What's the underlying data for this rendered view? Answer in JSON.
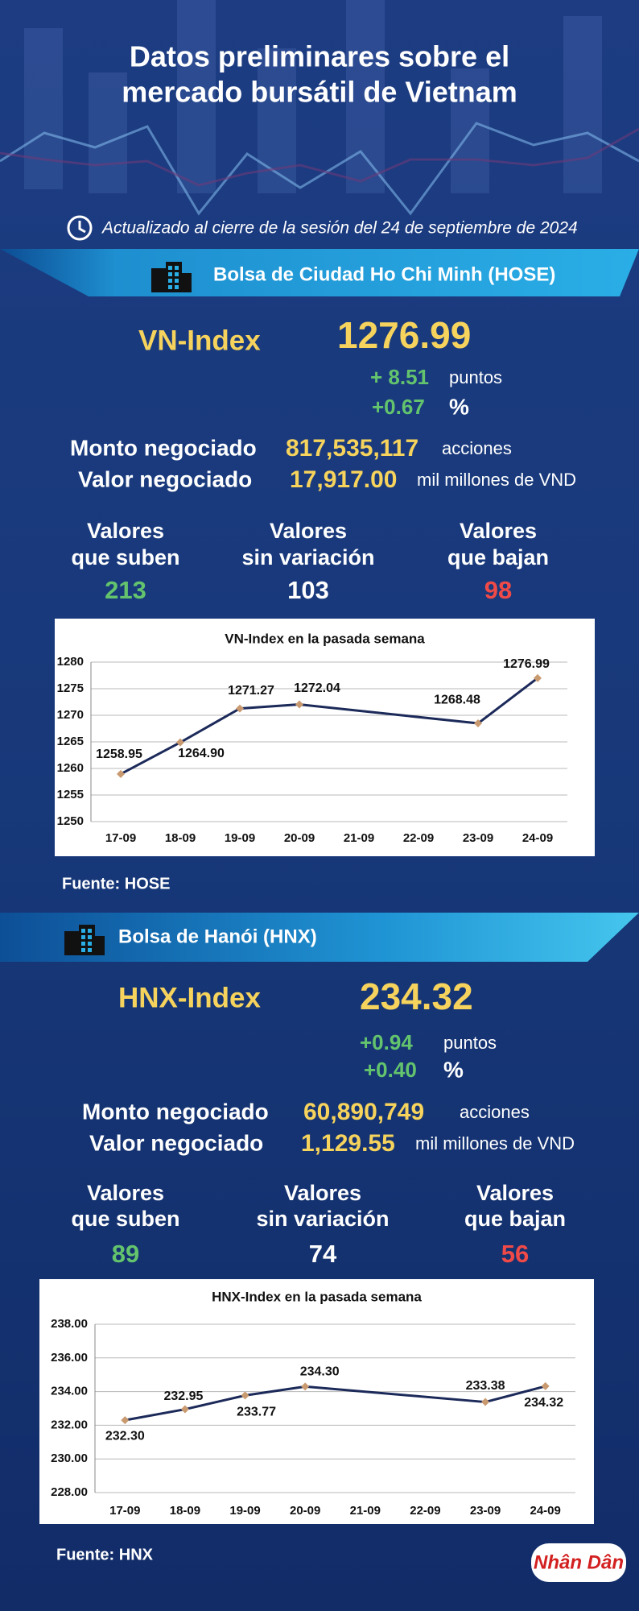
{
  "header": {
    "title": [
      "Datos preliminares sobre el",
      "mercado bursátil de Vietnam"
    ],
    "updated": "Actualizado al cierre de la sesión del 24 de septiembre de 2024"
  },
  "markets": [
    {
      "exchange": "Bolsa de Ciudad Ho Chi Minh (HOSE)",
      "index_name": "VN-Index",
      "index_value": "1276.99",
      "change_points": "+ 8.51",
      "points_unit": "puntos",
      "change_percent": "+0.67",
      "percent_unit": "%",
      "volume": {
        "label": "Monto negociado",
        "value": "817,535,117",
        "unit": "acciones"
      },
      "turnover": {
        "label": "Valor negociado",
        "value": "17,917.00",
        "unit": "mil millones de VND"
      },
      "breadth": [
        {
          "label": [
            "Valores",
            "que suben"
          ],
          "value": "213"
        },
        {
          "label": [
            "Valores",
            "sin variación"
          ],
          "value": "103"
        },
        {
          "label": [
            "Valores",
            "que bajan"
          ],
          "value": "98"
        }
      ],
      "source": "Fuente: HOSE"
    },
    {
      "exchange": "Bolsa de Hanói (HNX)",
      "index_name": "HNX-Index",
      "index_value": "234.32",
      "change_points": "+0.94",
      "points_unit": "puntos",
      "change_percent": "+0.40",
      "percent_unit": "%",
      "volume": {
        "label": "Monto negociado",
        "value": "60,890,749",
        "unit": "acciones"
      },
      "turnover": {
        "label": "Valor negociado",
        "value": "1,129.55",
        "unit": "mil millones de VND"
      },
      "breadth": [
        {
          "label": [
            "Valores",
            "que suben"
          ],
          "value": "89"
        },
        {
          "label": [
            "Valores",
            "sin variación"
          ],
          "value": "74"
        },
        {
          "label": [
            "Valores",
            "que bajan"
          ],
          "value": "56"
        }
      ],
      "source": "Fuente:  HNX"
    }
  ],
  "logo": "Nhân Dân",
  "chart_data": [
    {
      "type": "line",
      "title": "VN-Index en la pasada semana",
      "categories": [
        "17-09",
        "18-09",
        "19-09",
        "20-09",
        "21-09",
        "22-09",
        "23-09",
        "24-09"
      ],
      "series": [
        {
          "color": "#1c2a5a",
          "marker_color": "#c99a70",
          "values": [
            1258.95,
            1264.9,
            1271.27,
            1272.04,
            null,
            null,
            1268.48,
            1276.99
          ],
          "value_labels": [
            "1258.95",
            "1264.90",
            "1271.27",
            "1272.04",
            null,
            null,
            "1268.48",
            "1276.99"
          ]
        }
      ],
      "ylim": [
        1250,
        1280
      ],
      "yticks": [
        1250,
        1255,
        1260,
        1265,
        1270,
        1275,
        1280
      ],
      "grid": true
    },
    {
      "type": "line",
      "title": "HNX-Index en la pasada semana",
      "categories": [
        "17-09",
        "18-09",
        "19-09",
        "20-09",
        "21-09",
        "22-09",
        "23-09",
        "24-09"
      ],
      "series": [
        {
          "color": "#1c2a5a",
          "marker_color": "#c99a70",
          "values": [
            232.3,
            232.95,
            233.77,
            234.3,
            null,
            null,
            233.38,
            234.32
          ],
          "value_labels": [
            "232.30",
            "232.95",
            "233.77",
            "234.30",
            null,
            null,
            "233.38",
            "234.32"
          ]
        }
      ],
      "ylim": [
        228,
        238
      ],
      "yticks": [
        {
          "value": 228,
          "label": "228.00"
        },
        {
          "value": 230,
          "label": "230.00"
        },
        {
          "value": 232,
          "label": "232.00"
        },
        {
          "value": 234,
          "label": "234.00"
        },
        {
          "value": 236,
          "label": "236.00"
        },
        {
          "value": 238,
          "label": "238.00"
        }
      ],
      "grid": true
    }
  ]
}
